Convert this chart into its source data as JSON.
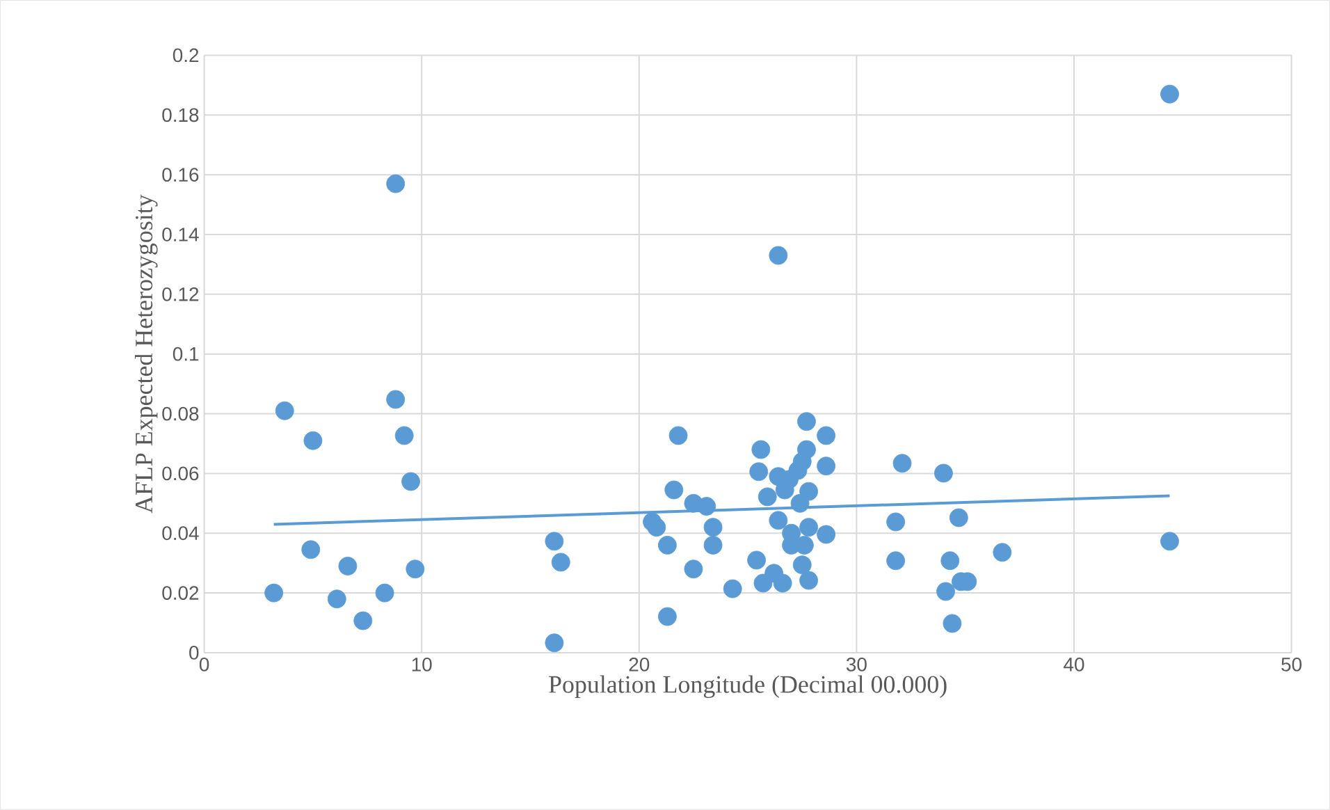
{
  "chart_data": {
    "type": "scatter",
    "xlabel": "Population Longitude (Decimal 00.000)",
    "ylabel": "AFLP Expected Heterozygosity",
    "xlim": [
      0,
      50
    ],
    "ylim": [
      0,
      0.2
    ],
    "xticks": [
      0,
      10,
      20,
      30,
      40,
      50
    ],
    "yticks": [
      0,
      0.02,
      0.04,
      0.06,
      0.08,
      0.1,
      0.12,
      0.14,
      0.16,
      0.18,
      0.2
    ],
    "grid": true,
    "series": [
      {
        "marker": "circle",
        "color": "#5b9bd5",
        "x": [
          3.2,
          3.7,
          5.0,
          4.9,
          6.1,
          6.6,
          7.3,
          8.3,
          8.8,
          8.8,
          9.2,
          9.5,
          9.7,
          16.1,
          16.4,
          16.1,
          21.8,
          21.6,
          20.6,
          20.8,
          21.3,
          21.3,
          22.5,
          22.5,
          23.1,
          23.4,
          23.4,
          24.3,
          25.6,
          25.5,
          25.4,
          25.7,
          26.2,
          26.6,
          25.9,
          26.4,
          26.4,
          26.7,
          26.9,
          27.3,
          27.5,
          27.7,
          27.7,
          28.6,
          28.6,
          27.8,
          27.4,
          27.0,
          27.0,
          27.8,
          27.6,
          28.6,
          27.5,
          27.8,
          26.4,
          32.1,
          34.0,
          31.8,
          34.7,
          31.8,
          34.3,
          36.7,
          34.1,
          34.8,
          35.1,
          34.4,
          44.4,
          44.4
        ],
        "values": [
          0.02,
          0.081,
          0.071,
          0.0345,
          0.018,
          0.029,
          0.0107,
          0.02,
          0.0848,
          0.157,
          0.0727,
          0.0573,
          0.028,
          0.0373,
          0.0303,
          0.0033,
          0.0727,
          0.0545,
          0.0438,
          0.042,
          0.036,
          0.0121,
          0.028,
          0.05,
          0.049,
          0.042,
          0.036,
          0.0214,
          0.068,
          0.0606,
          0.031,
          0.0233,
          0.0266,
          0.0233,
          0.0522,
          0.059,
          0.0443,
          0.0545,
          0.058,
          0.061,
          0.064,
          0.068,
          0.0774,
          0.0727,
          0.0625,
          0.054,
          0.05,
          0.04,
          0.036,
          0.042,
          0.036,
          0.0396,
          0.0294,
          0.0242,
          0.133,
          0.0634,
          0.0601,
          0.0438,
          0.0452,
          0.0308,
          0.0308,
          0.0336,
          0.0205,
          0.0238,
          0.0238,
          0.0098,
          0.0373,
          0.187
        ]
      },
      {
        "type": "line",
        "marker": "none",
        "color": "#5b9bd5",
        "x": [
          3.2,
          44.4
        ],
        "values": [
          0.043,
          0.0525
        ]
      }
    ]
  }
}
